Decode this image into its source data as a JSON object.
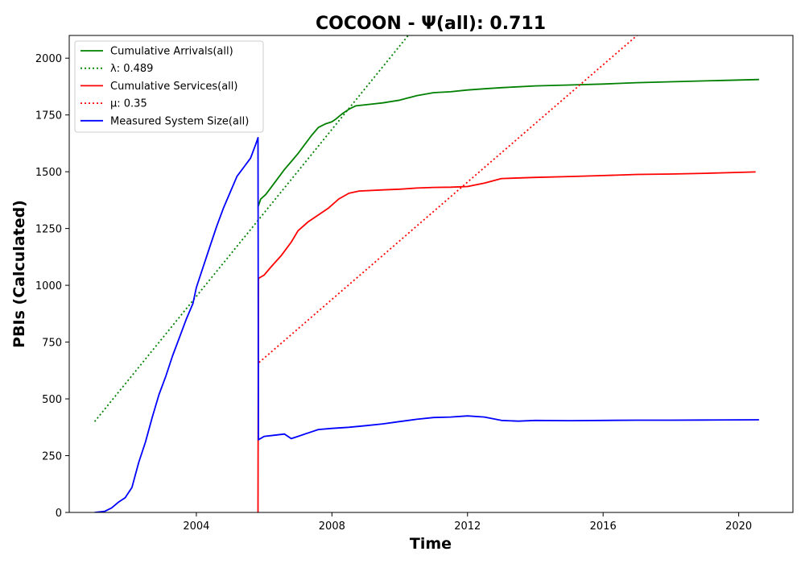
{
  "chart_data": {
    "type": "line",
    "title": "COCOON -  Ψ(all): 0.711",
    "xlabel": "Time",
    "ylabel": "PBIs (Calculated)",
    "xlim": [
      2000.25,
      2021.6
    ],
    "ylim": [
      0,
      2100
    ],
    "x_ticks": [
      2004,
      2008,
      2012,
      2016,
      2020
    ],
    "y_ticks": [
      0,
      250,
      500,
      750,
      1000,
      1250,
      1500,
      1750,
      2000
    ],
    "grid": false,
    "legend_position": "top-left",
    "series": [
      {
        "name": "Cumulative Arrivals(all)",
        "color": "#008000",
        "style": "solid",
        "points": [
          [
            2005.82,
            1345
          ],
          [
            2005.9,
            1380
          ],
          [
            2006.05,
            1400
          ],
          [
            2006.2,
            1430
          ],
          [
            2006.4,
            1470
          ],
          [
            2006.6,
            1510
          ],
          [
            2006.8,
            1545
          ],
          [
            2007.0,
            1580
          ],
          [
            2007.2,
            1620
          ],
          [
            2007.4,
            1660
          ],
          [
            2007.6,
            1695
          ],
          [
            2007.8,
            1710
          ],
          [
            2008.0,
            1720
          ],
          [
            2008.1,
            1730
          ],
          [
            2008.3,
            1755
          ],
          [
            2008.5,
            1775
          ],
          [
            2008.7,
            1790
          ],
          [
            2009.0,
            1795
          ],
          [
            2009.5,
            1803
          ],
          [
            2010.0,
            1815
          ],
          [
            2010.5,
            1835
          ],
          [
            2011.0,
            1848
          ],
          [
            2011.5,
            1852
          ],
          [
            2012.0,
            1860
          ],
          [
            2012.5,
            1865
          ],
          [
            2013.0,
            1870
          ],
          [
            2014.0,
            1878
          ],
          [
            2015.0,
            1882
          ],
          [
            2016.0,
            1886
          ],
          [
            2017.0,
            1892
          ],
          [
            2018.0,
            1896
          ],
          [
            2019.0,
            1900
          ],
          [
            2020.6,
            1906
          ]
        ]
      },
      {
        "name": "λ: 0.489",
        "color": "#008000",
        "style": "dotted",
        "points": [
          [
            2001.0,
            400
          ],
          [
            2010.25,
            2100
          ]
        ]
      },
      {
        "name": "Cumulative Services(all)",
        "color": "#ff0000",
        "style": "solid",
        "points": [
          [
            2005.82,
            0
          ],
          [
            2005.83,
            1030
          ],
          [
            2006.0,
            1045
          ],
          [
            2006.2,
            1080
          ],
          [
            2006.5,
            1130
          ],
          [
            2006.8,
            1190
          ],
          [
            2007.0,
            1240
          ],
          [
            2007.3,
            1280
          ],
          [
            2007.6,
            1310
          ],
          [
            2007.9,
            1340
          ],
          [
            2008.2,
            1380
          ],
          [
            2008.5,
            1405
          ],
          [
            2008.8,
            1415
          ],
          [
            2009.5,
            1420
          ],
          [
            2010.0,
            1423
          ],
          [
            2010.5,
            1428
          ],
          [
            2011.0,
            1431
          ],
          [
            2011.5,
            1432
          ],
          [
            2012.0,
            1435
          ],
          [
            2012.5,
            1450
          ],
          [
            2013.0,
            1470
          ],
          [
            2014.0,
            1475
          ],
          [
            2015.0,
            1479
          ],
          [
            2016.0,
            1483
          ],
          [
            2017.0,
            1488
          ],
          [
            2018.0,
            1490
          ],
          [
            2019.0,
            1493
          ],
          [
            2020.5,
            1499
          ]
        ]
      },
      {
        "name": "μ: 0.35",
        "color": "#ff0000",
        "style": "dotted",
        "points": [
          [
            2005.85,
            660
          ],
          [
            2017.0,
            2100
          ]
        ]
      },
      {
        "name": "Measured System Size(all)",
        "color": "#0000ff",
        "style": "solid",
        "points": [
          [
            2001.0,
            0
          ],
          [
            2001.3,
            5
          ],
          [
            2001.5,
            20
          ],
          [
            2001.7,
            45
          ],
          [
            2001.9,
            65
          ],
          [
            2002.1,
            110
          ],
          [
            2002.3,
            220
          ],
          [
            2002.5,
            310
          ],
          [
            2002.7,
            420
          ],
          [
            2002.9,
            520
          ],
          [
            2003.1,
            600
          ],
          [
            2003.3,
            690
          ],
          [
            2003.5,
            770
          ],
          [
            2003.7,
            850
          ],
          [
            2003.9,
            920
          ],
          [
            2004.0,
            990
          ],
          [
            2004.2,
            1080
          ],
          [
            2004.4,
            1170
          ],
          [
            2004.6,
            1260
          ],
          [
            2004.8,
            1340
          ],
          [
            2005.0,
            1410
          ],
          [
            2005.2,
            1480
          ],
          [
            2005.4,
            1520
          ],
          [
            2005.6,
            1560
          ],
          [
            2005.75,
            1620
          ],
          [
            2005.82,
            1650
          ],
          [
            2005.83,
            320
          ],
          [
            2006.0,
            335
          ],
          [
            2006.3,
            340
          ],
          [
            2006.6,
            345
          ],
          [
            2006.8,
            325
          ],
          [
            2007.0,
            335
          ],
          [
            2007.3,
            350
          ],
          [
            2007.6,
            365
          ],
          [
            2008.0,
            370
          ],
          [
            2008.5,
            375
          ],
          [
            2009.0,
            382
          ],
          [
            2009.5,
            390
          ],
          [
            2010.0,
            400
          ],
          [
            2010.5,
            410
          ],
          [
            2011.0,
            418
          ],
          [
            2011.5,
            420
          ],
          [
            2012.0,
            425
          ],
          [
            2012.5,
            420
          ],
          [
            2013.0,
            405
          ],
          [
            2013.5,
            402
          ],
          [
            2014.0,
            405
          ],
          [
            2015.0,
            404
          ],
          [
            2016.0,
            405
          ],
          [
            2017.0,
            406
          ],
          [
            2018.0,
            406
          ],
          [
            2019.0,
            407
          ],
          [
            2020.6,
            408
          ]
        ]
      }
    ]
  }
}
